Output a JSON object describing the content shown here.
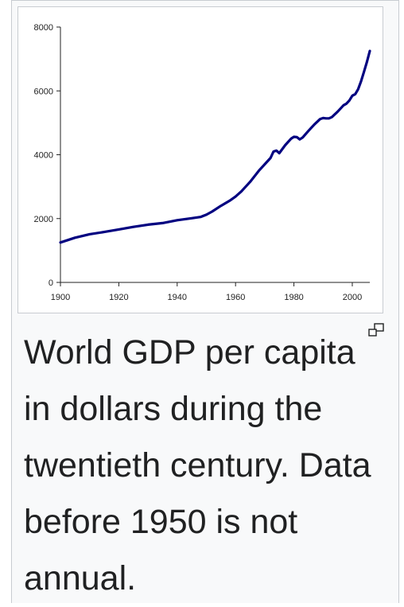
{
  "caption": "World GDP per capita in dollars during the twentieth century. Data before 1950 is not annual.",
  "icons": {
    "enlarge": "magnify-clip-icon"
  },
  "colors": {
    "line": "#000080",
    "axis": "#222222",
    "frame_border": "#c8ccd1",
    "frame_bg": "#f8f9fa"
  },
  "chart_data": {
    "type": "line",
    "title": "",
    "xlabel": "",
    "ylabel": "",
    "xlim": [
      1900,
      2006
    ],
    "ylim": [
      0,
      8000
    ],
    "xticks": [
      1900,
      1920,
      1940,
      1960,
      1980,
      2000
    ],
    "yticks": [
      0,
      2000,
      4000,
      6000,
      8000
    ],
    "grid": false,
    "legend": "none",
    "series": [
      {
        "x": [
          1900,
          1905,
          1910,
          1915,
          1920,
          1925,
          1930,
          1935,
          1940,
          1945,
          1948,
          1950,
          1952,
          1955,
          1958,
          1960,
          1962,
          1965,
          1968,
          1970,
          1972,
          1973,
          1974,
          1975,
          1977,
          1979,
          1980,
          1981,
          1982,
          1983,
          1985,
          1987,
          1989,
          1990,
          1991,
          1992,
          1993,
          1995,
          1997,
          1998,
          1999,
          2000,
          2001,
          2002,
          2003,
          2004,
          2005,
          2006
        ],
        "y": [
          1250,
          1400,
          1510,
          1580,
          1660,
          1740,
          1810,
          1860,
          1950,
          2010,
          2050,
          2120,
          2220,
          2400,
          2560,
          2690,
          2850,
          3150,
          3500,
          3700,
          3900,
          4100,
          4130,
          4050,
          4300,
          4500,
          4560,
          4550,
          4480,
          4540,
          4750,
          4950,
          5120,
          5150,
          5140,
          5140,
          5180,
          5350,
          5550,
          5600,
          5700,
          5850,
          5900,
          6050,
          6300,
          6600,
          6900,
          7250
        ]
      }
    ]
  }
}
